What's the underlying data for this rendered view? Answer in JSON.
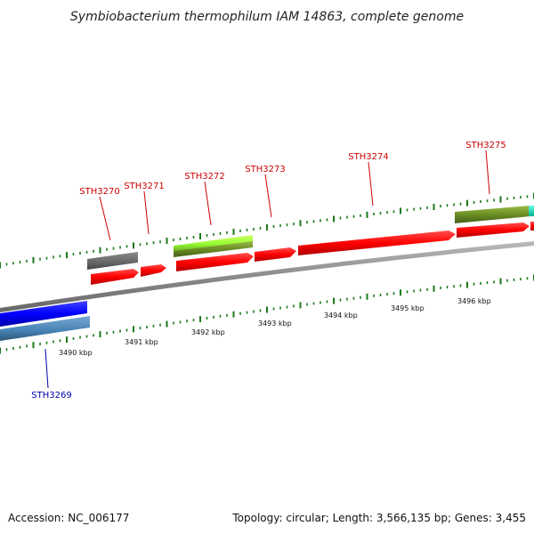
{
  "title": "Symbiobacterium thermophilum IAM 14863, complete genome",
  "footer": {
    "accession": "Accession: NC_006177",
    "summary": "Topology: circular; Length: 3,566,135 bp; Genes: 3,455"
  },
  "colors": {
    "cds_red": "#ff0000",
    "reverse_blue": "#0000ff",
    "steel_blue": "#4682b4",
    "gray": "#666666",
    "lime": "#99ff33",
    "olive": "#6b8e23",
    "teal": "#00e0c0",
    "label_red": "#cc0000",
    "label_blue": "#0000aa",
    "backbone": "#8a8a8a",
    "tick_green": "#1a7a1a"
  },
  "kbp_labels": [
    "3490 kbp",
    "3491 kbp",
    "3492 kbp",
    "3493 kbp",
    "3494 kbp",
    "3495 kbp",
    "3496 kbp"
  ],
  "gene_labels": {
    "STH3269": "STH3269",
    "STH3270": "STH3270",
    "STH3271": "STH3271",
    "STH3272": "STH3272",
    "STH3273": "STH3273",
    "STH3274": "STH3274",
    "STH3275": "STH3275"
  }
}
